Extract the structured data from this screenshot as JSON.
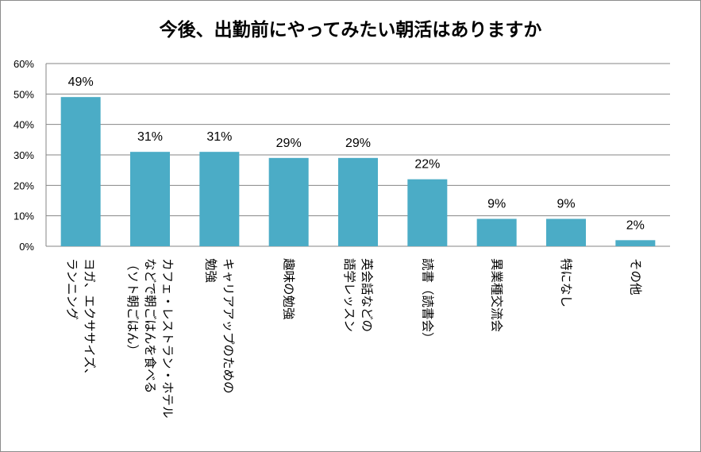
{
  "chart_data": {
    "type": "bar",
    "title": "今後、出勤前にやってみたい朝活はありますか",
    "categories": [
      [
        "ヨガ、エクササイズ、",
        "ランニング"
      ],
      [
        "カフェ・レストラン・ホテル",
        "などで朝ごはんを食べる",
        "（ソト朝ごはん）"
      ],
      [
        "キャリアアップのための",
        "勉強"
      ],
      [
        "趣味の勉強"
      ],
      [
        "英会話などの",
        "語学レッスン"
      ],
      [
        "読書（読書会）"
      ],
      [
        "異業種交流会"
      ],
      [
        "特になし"
      ],
      [
        "その他"
      ]
    ],
    "values": [
      49,
      31,
      31,
      29,
      29,
      22,
      9,
      9,
      2
    ],
    "data_labels": [
      "49%",
      "31%",
      "31%",
      "29%",
      "29%",
      "22%",
      "9%",
      "9%",
      "2%"
    ],
    "y_ticks": [
      "0%",
      "10%",
      "20%",
      "30%",
      "40%",
      "50%",
      "60%"
    ],
    "ylim": [
      0,
      60
    ],
    "grid": true,
    "bar_color": "#4bacc6",
    "grid_color": "#868686"
  }
}
